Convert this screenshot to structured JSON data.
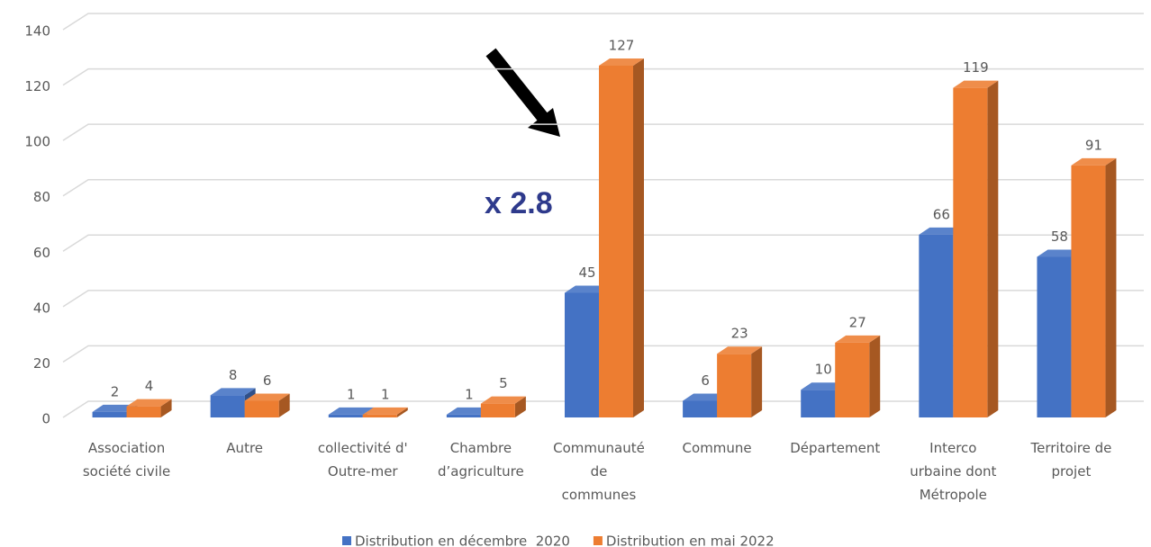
{
  "chart_data": {
    "type": "bar3d",
    "annotation": "x 2.8",
    "categories": [
      "Association\nsociété civile",
      "Autre",
      "collectivité d'\nOutre-mer",
      "Chambre\nd’agriculture",
      "Communauté\nde\ncommunes",
      "Commune",
      "Département",
      "Interco\nurbaine dont\nMétropole",
      "Territoire de\nprojet"
    ],
    "series": [
      {
        "name": "Distribution en décembre  2020",
        "color": "#4472c4",
        "values": [
          2,
          8,
          1,
          1,
          45,
          6,
          10,
          66,
          58
        ]
      },
      {
        "name": "Distribution en mai 2022",
        "color": "#ed7d31",
        "values": [
          4,
          6,
          1,
          5,
          127,
          23,
          27,
          119,
          91
        ]
      }
    ],
    "ylim": [
      0,
      140
    ],
    "yticks": [
      0,
      20,
      40,
      60,
      80,
      100,
      120,
      140
    ],
    "grid": true,
    "legend": "bottom"
  }
}
